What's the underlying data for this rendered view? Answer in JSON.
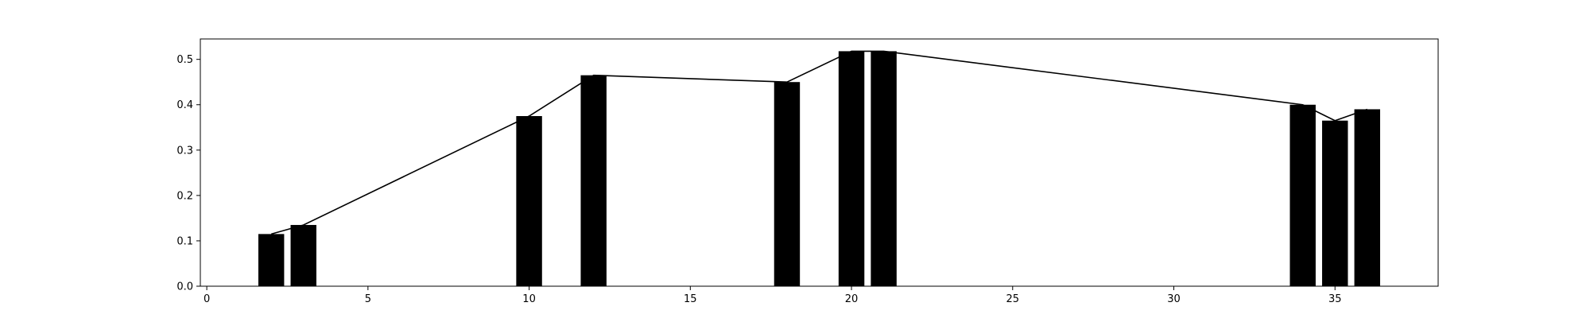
{
  "chart_data": {
    "type": "bar",
    "title": "",
    "xlabel": "",
    "ylabel": "",
    "x": [
      2,
      3,
      10,
      12,
      18,
      20,
      21,
      34,
      35,
      36
    ],
    "values": [
      0.115,
      0.135,
      0.375,
      0.465,
      0.45,
      0.518,
      0.518,
      0.4,
      0.365,
      0.39
    ],
    "bar_width": 0.8,
    "line_overlay": true,
    "xlim": [
      -0.2,
      38.2
    ],
    "ylim": [
      0,
      0.545
    ],
    "xticks": [
      0,
      5,
      10,
      15,
      20,
      25,
      30,
      35
    ],
    "yticks": [
      0.0,
      0.1,
      0.2,
      0.3,
      0.4,
      0.5
    ],
    "xtick_labels": [
      "0",
      "5",
      "10",
      "15",
      "20",
      "25",
      "30",
      "35"
    ],
    "ytick_labels": [
      "0.0",
      "0.1",
      "0.2",
      "0.3",
      "0.4",
      "0.5"
    ],
    "bar_color": "#000000",
    "line_color": "#000000",
    "grid": false,
    "legend": "none"
  }
}
